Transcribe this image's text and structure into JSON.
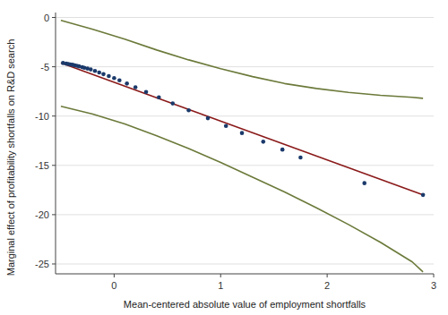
{
  "chart_data": {
    "type": "line",
    "xlabel": "Mean-centered absolute value of employment shortfalls",
    "ylabel": "Marginal effect of profitability shortfalls on R&D search",
    "xlim": [
      -0.55,
      3.0
    ],
    "ylim": [
      -26,
      0.5
    ],
    "xticks": [
      0,
      1,
      2,
      3
    ],
    "yticks": [
      0,
      -5,
      -10,
      -15,
      -20,
      -25
    ],
    "grid": true,
    "series": [
      {
        "type": "line",
        "color": "#6B7A3A",
        "x": [
          -0.5,
          -0.2,
          0.1,
          0.4,
          0.7,
          1.0,
          1.3,
          1.6,
          1.9,
          2.2,
          2.5,
          2.8,
          2.9
        ],
        "values": [
          -0.3,
          -1.2,
          -2.2,
          -3.3,
          -4.3,
          -5.2,
          -6.0,
          -6.7,
          -7.2,
          -7.6,
          -7.9,
          -8.1,
          -8.2
        ]
      },
      {
        "type": "line",
        "color": "#6B7A3A",
        "x": [
          -0.5,
          -0.2,
          0.1,
          0.4,
          0.7,
          1.0,
          1.3,
          1.6,
          1.9,
          2.2,
          2.5,
          2.8,
          2.9
        ],
        "values": [
          -9.0,
          -9.8,
          -10.8,
          -12.0,
          -13.3,
          -14.7,
          -16.2,
          -17.7,
          -19.3,
          -21.0,
          -22.8,
          -24.8,
          -25.8
        ]
      },
      {
        "type": "line",
        "color": "#8B1A1A",
        "x": [
          -0.5,
          2.9
        ],
        "values": [
          -4.6,
          -18.0
        ]
      },
      {
        "type": "scatter",
        "color": "#1B3A6B",
        "x": [
          -0.48,
          -0.45,
          -0.43,
          -0.41,
          -0.39,
          -0.37,
          -0.35,
          -0.33,
          -0.3,
          -0.28,
          -0.25,
          -0.22,
          -0.18,
          -0.14,
          -0.1,
          -0.05,
          0.0,
          0.05,
          0.12,
          0.2,
          0.3,
          0.42,
          0.55,
          0.7,
          0.88,
          1.05,
          1.2,
          1.4,
          1.58,
          1.75,
          2.35,
          2.9
        ],
        "values": [
          -4.62,
          -4.68,
          -4.72,
          -4.76,
          -4.8,
          -4.85,
          -4.9,
          -4.96,
          -5.03,
          -5.1,
          -5.18,
          -5.27,
          -5.42,
          -5.58,
          -5.75,
          -5.95,
          -6.15,
          -6.38,
          -6.7,
          -7.08,
          -7.55,
          -8.1,
          -8.72,
          -9.42,
          -10.22,
          -11.0,
          -11.72,
          -12.6,
          -13.4,
          -14.2,
          -16.8,
          -18.0
        ]
      }
    ]
  }
}
